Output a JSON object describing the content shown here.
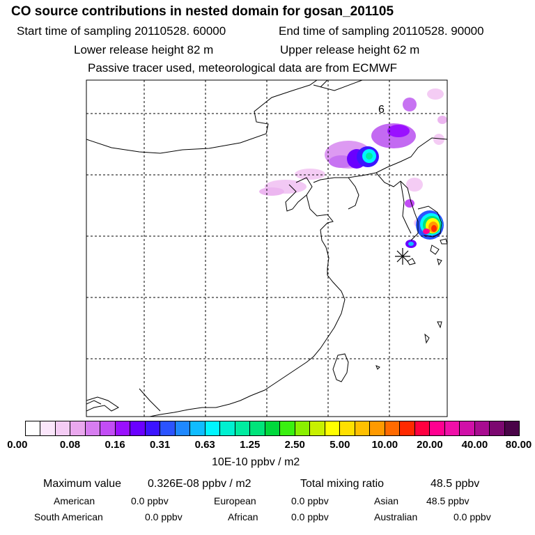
{
  "header": {
    "title": "CO  source contributions in nested domain for gosan_201105",
    "start_time": "Start time of sampling 20110528. 60000",
    "end_time": "End time of sampling 20110528. 90000",
    "lower_height": "Lower release height   82 m",
    "upper_height": "Upper release height   62 m",
    "note": "Passive tracer used, meteorological data are from ECMWF"
  },
  "map": {
    "time_label": "6"
  },
  "colorbar": {
    "colors": [
      "#ffffff",
      "#fbe6fb",
      "#f4ccf4",
      "#eaa8ee",
      "#d77df0",
      "#c24df5",
      "#9a10ff",
      "#6a00ff",
      "#3c14ff",
      "#2b53ff",
      "#1e88ff",
      "#0fbcff",
      "#00f5ff",
      "#00f0d0",
      "#00eca0",
      "#00e47a",
      "#00d83c",
      "#3af010",
      "#8af000",
      "#c8f000",
      "#ffff00",
      "#ffe000",
      "#ffc000",
      "#ff9a00",
      "#ff6a00",
      "#ff2a00",
      "#ff0040",
      "#ff0090",
      "#f010a8",
      "#d010a8",
      "#a80c90",
      "#7c0870",
      "#4a0448"
    ],
    "ticks": [
      "0.00",
      "0.08",
      "0.16",
      "0.31",
      "0.63",
      "1.25",
      "2.50",
      "5.00",
      "10.00",
      "20.00",
      "40.00",
      "80.00"
    ],
    "unit": "10E-10 ppbv / m2"
  },
  "stats": {
    "max_label": "Maximum value",
    "max_value": "0.326E-08 ppbv / m2",
    "total_label": "Total mixing ratio",
    "total_value": "48.5 ppbv"
  },
  "sources": [
    {
      "name": "American",
      "value": "0.0 ppbv"
    },
    {
      "name": "European",
      "value": "0.0 ppbv"
    },
    {
      "name": "Asian",
      "value": "48.5 ppbv"
    },
    {
      "name": "South American",
      "value": "0.0 ppbv"
    },
    {
      "name": "African",
      "value": "0.0 ppbv"
    },
    {
      "name": "Australian",
      "value": "0.0 ppbv"
    }
  ]
}
